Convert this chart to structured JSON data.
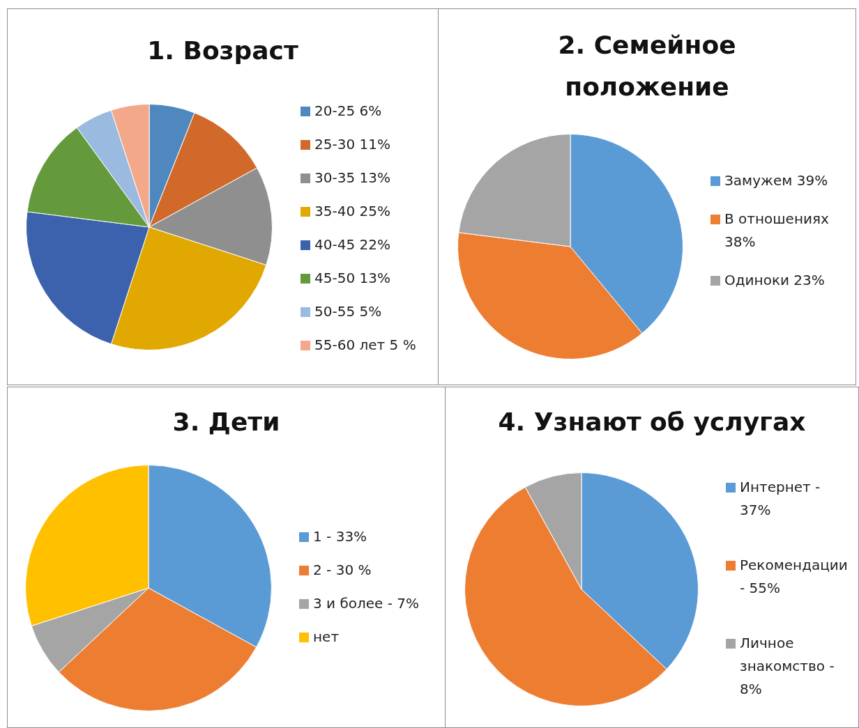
{
  "chart_data": [
    {
      "type": "pie",
      "title": "1. Возраст",
      "legend": "right",
      "categories": [
        "20-25 6%",
        "25-30 11%",
        "30-35 13%",
        "35-40 25%",
        "40-45 22%",
        "45-50 13%",
        "50-55 5%",
        "55-60 лет 5 %"
      ],
      "values": [
        6,
        11,
        13,
        25,
        22,
        13,
        5,
        5
      ],
      "colors": [
        "#4f88bf",
        "#d0692a",
        "#8f8f8f",
        "#e0a800",
        "#3c62ad",
        "#64993c",
        "#9bbae0",
        "#f3a88a"
      ]
    },
    {
      "type": "pie",
      "title": "2. Семейное положение",
      "legend": "right",
      "categories": [
        "Замужем 39%",
        "В отношениях 38%",
        "Одиноки 23%"
      ],
      "values": [
        39,
        38,
        23
      ],
      "colors": [
        "#5b9bd5",
        "#ed7d31",
        "#a5a5a5"
      ]
    },
    {
      "type": "pie",
      "title": "3. Дети",
      "legend": "right",
      "categories": [
        "1 - 33%",
        "2 - 30 %",
        "3 и более - 7%",
        "нет"
      ],
      "values": [
        33,
        30,
        7,
        30
      ],
      "colors": [
        "#5b9bd5",
        "#ed7d31",
        "#a5a5a5",
        "#ffc000"
      ]
    },
    {
      "type": "pie",
      "title": "4. Узнают об услугах",
      "legend": "right",
      "categories": [
        "Интернет - 37%",
        "Рекомендации - 55%",
        "Личное знакомство - 8%"
      ],
      "values": [
        37,
        55,
        8
      ],
      "colors": [
        "#5b9bd5",
        "#ed7d31",
        "#a5a5a5"
      ]
    }
  ]
}
